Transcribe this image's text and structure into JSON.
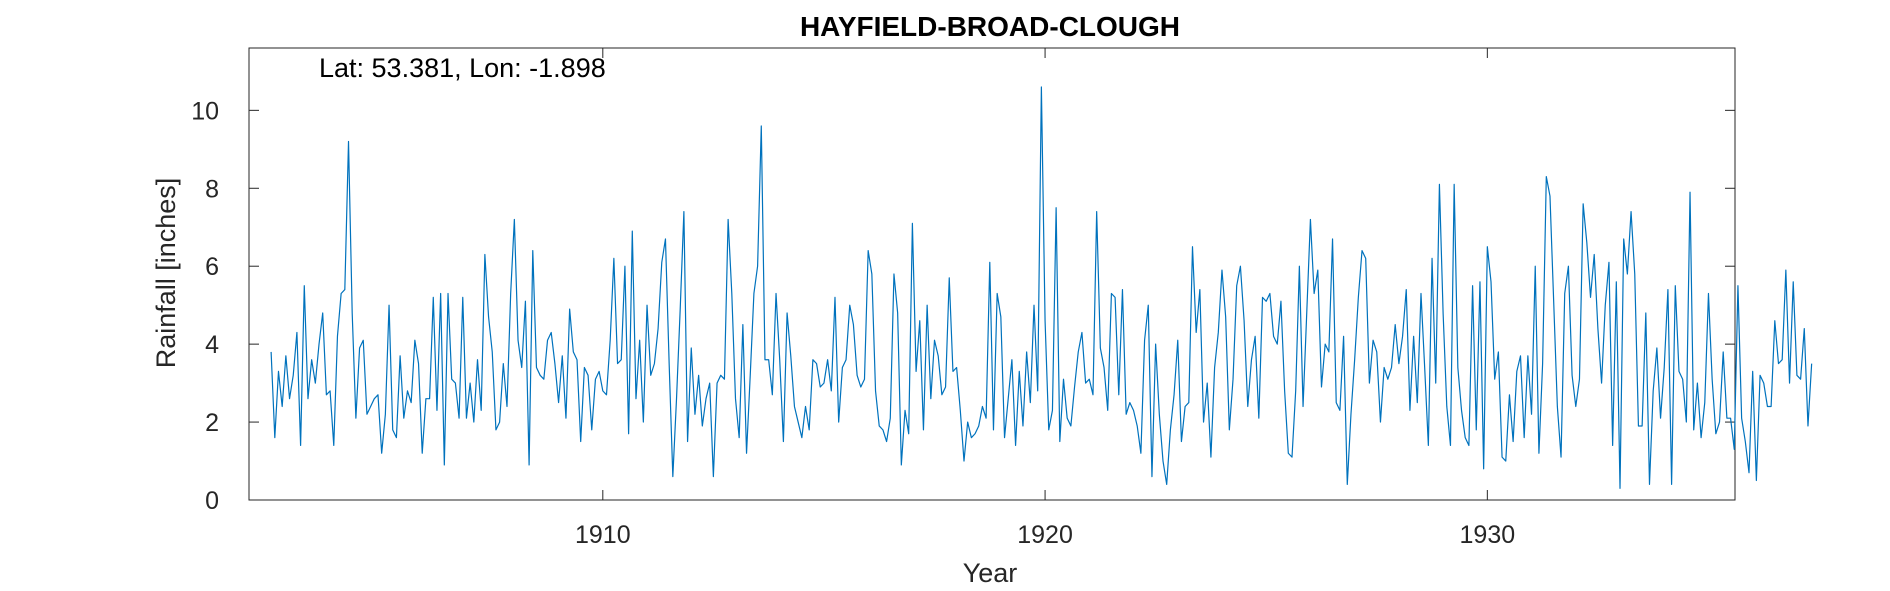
{
  "chart_data": {
    "type": "line",
    "title": "HAYFIELD-BROAD-CLOUGH",
    "annotation": "Lat: 53.381, Lon: -1.898",
    "xlabel": "Year",
    "ylabel": "Rainfall [inches]",
    "xlim": [
      1902.0,
      1935.6
    ],
    "ylim": [
      0,
      11.6
    ],
    "xticks": [
      1910,
      1920,
      1930
    ],
    "yticks": [
      0,
      2,
      4,
      6,
      8,
      10
    ],
    "grid": false,
    "line_color": "#0072BD",
    "series": [
      {
        "x_start": 1902.5,
        "x_step": 0.083333,
        "values": [
          3.8,
          1.6,
          3.3,
          2.4,
          3.7,
          2.6,
          3.2,
          4.3,
          1.4,
          5.5,
          2.6,
          3.6,
          3.0,
          4.0,
          4.8,
          2.7,
          2.8,
          1.4,
          4.2,
          5.3,
          5.4,
          9.2,
          4.8,
          2.1,
          3.9,
          4.1,
          2.2,
          2.4,
          2.6,
          2.7,
          1.2,
          2.2,
          5.0,
          1.8,
          1.6,
          3.7,
          2.1,
          2.8,
          2.5,
          4.1,
          3.5,
          1.2,
          2.6,
          2.6,
          5.2,
          2.3,
          5.3,
          0.9,
          5.3,
          3.1,
          3.0,
          2.1,
          5.2,
          2.1,
          3.0,
          2.0,
          3.6,
          2.3,
          6.3,
          4.7,
          3.8,
          1.8,
          2.0,
          3.5,
          2.4,
          5.3,
          7.2,
          4.1,
          3.4,
          5.1,
          0.9,
          6.4,
          3.4,
          3.2,
          3.1,
          4.1,
          4.3,
          3.5,
          2.5,
          3.7,
          2.1,
          4.9,
          3.8,
          3.6,
          1.5,
          3.4,
          3.2,
          1.8,
          3.1,
          3.3,
          2.8,
          2.7,
          4.1,
          6.2,
          3.5,
          3.6,
          6.0,
          1.7,
          6.9,
          2.6,
          4.1,
          2.0,
          5.0,
          3.2,
          3.5,
          4.4,
          6.1,
          6.7,
          3.5,
          0.6,
          2.6,
          4.9,
          7.4,
          1.5,
          3.9,
          2.2,
          3.2,
          1.9,
          2.6,
          3.0,
          0.6,
          3.0,
          3.2,
          3.1,
          7.2,
          5.3,
          2.6,
          1.6,
          4.5,
          1.2,
          3.2,
          5.3,
          6.0,
          9.6,
          3.6,
          3.6,
          2.7,
          5.3,
          3.6,
          1.5,
          4.8,
          3.7,
          2.4,
          2.0,
          1.6,
          2.4,
          1.8,
          3.6,
          3.5,
          2.9,
          3.0,
          3.6,
          2.8,
          5.2,
          2.0,
          3.4,
          3.6,
          5.0,
          4.5,
          3.2,
          2.9,
          3.1,
          6.4,
          5.8,
          2.8,
          1.9,
          1.8,
          1.5,
          2.1,
          5.8,
          4.8,
          0.9,
          2.3,
          1.7,
          7.1,
          3.3,
          4.6,
          1.8,
          5.0,
          2.6,
          4.1,
          3.7,
          2.7,
          2.9,
          5.7,
          3.3,
          3.4,
          2.3,
          1.0,
          2.0,
          1.6,
          1.7,
          1.9,
          2.4,
          2.1,
          6.1,
          1.8,
          5.3,
          4.7,
          1.6,
          2.6,
          3.6,
          1.4,
          3.3,
          1.9,
          3.8,
          2.5,
          5.0,
          2.8,
          10.6,
          4.6,
          1.8,
          2.3,
          7.5,
          1.5,
          3.1,
          2.1,
          1.9,
          2.9,
          3.8,
          4.3,
          3.0,
          3.1,
          2.7,
          7.4,
          3.9,
          3.4,
          2.3,
          5.3,
          5.2,
          2.7,
          5.4,
          2.2,
          2.5,
          2.3,
          1.9,
          1.2,
          4.1,
          5.0,
          0.6,
          4.0,
          2.2,
          1.0,
          0.4,
          1.8,
          2.7,
          4.1,
          1.5,
          2.4,
          2.5,
          6.5,
          4.3,
          5.4,
          2.0,
          3.0,
          1.1,
          3.4,
          4.3,
          5.9,
          4.7,
          1.8,
          3.1,
          5.5,
          6.0,
          4.6,
          2.4,
          3.6,
          4.2,
          2.1,
          5.2,
          5.1,
          5.3,
          4.2,
          4.0,
          5.1,
          2.8,
          1.2,
          1.1,
          2.8,
          6.0,
          2.4,
          4.8,
          7.2,
          5.3,
          5.9,
          2.9,
          4.0,
          3.8,
          6.7,
          2.5,
          2.3,
          4.2,
          0.4,
          2.2,
          3.6,
          5.2,
          6.4,
          6.2,
          3.0,
          4.1,
          3.8,
          2.0,
          3.4,
          3.1,
          3.4,
          4.5,
          3.5,
          4.2,
          5.4,
          2.3,
          4.2,
          2.5,
          5.3,
          3.4,
          1.4,
          6.2,
          3.0,
          8.1,
          4.8,
          2.4,
          1.4,
          8.1,
          3.4,
          2.3,
          1.6,
          1.4,
          5.5,
          1.8,
          5.6,
          0.8,
          6.5,
          5.6,
          3.1,
          3.8,
          1.1,
          1.0,
          2.7,
          1.5,
          3.3,
          3.7,
          1.6,
          3.7,
          2.2,
          6.0,
          1.2,
          3.5,
          8.3,
          7.8,
          5.1,
          2.4,
          1.1,
          5.3,
          6.0,
          3.2,
          2.4,
          3.1,
          7.6,
          6.6,
          5.2,
          6.3,
          4.4,
          3.0,
          5.0,
          6.1,
          1.4,
          5.6,
          0.3,
          6.7,
          5.8,
          7.4,
          5.8,
          1.9,
          1.9,
          4.8,
          0.4,
          2.8,
          3.9,
          2.1,
          3.4,
          5.4,
          0.4,
          5.5,
          3.3,
          3.1,
          2.0,
          7.9,
          1.8,
          3.0,
          1.6,
          2.5,
          5.3,
          3.1,
          1.7,
          2.0,
          3.8,
          2.1,
          2.1,
          1.3,
          5.5,
          2.1,
          1.5,
          0.7,
          3.3,
          0.5,
          3.2,
          3.0,
          2.4,
          2.4,
          4.6,
          3.5,
          3.6,
          5.9,
          3.0,
          5.6,
          3.2,
          3.1,
          4.4,
          1.9,
          3.5
        ]
      }
    ]
  }
}
